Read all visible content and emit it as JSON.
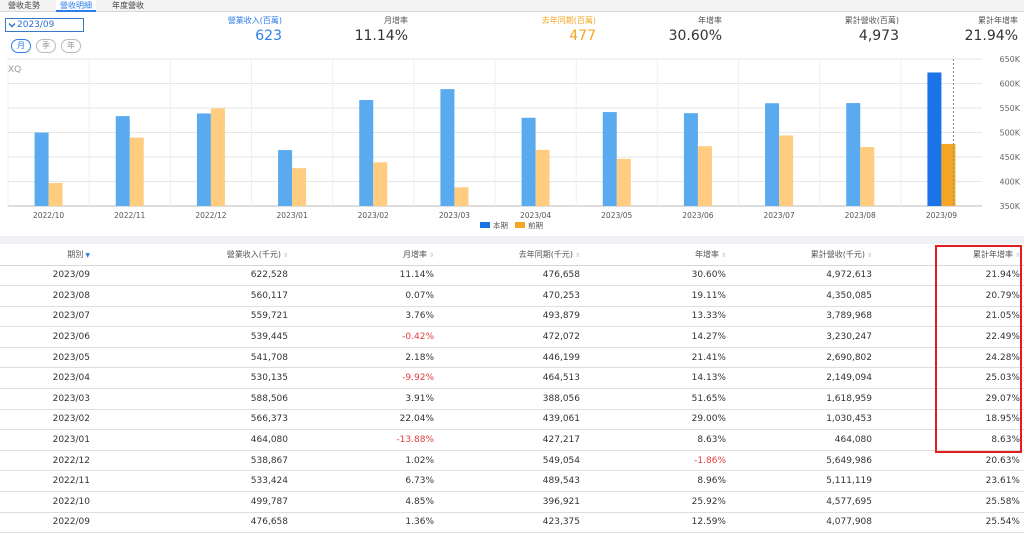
{
  "tabs": [
    {
      "label": "營收走勢"
    },
    {
      "label": "營收明細"
    },
    {
      "label": "年度營收"
    }
  ],
  "period_select": {
    "value": "2023/09",
    "icon": "chevron-down-icon"
  },
  "segments": [
    {
      "label": "月"
    },
    {
      "label": "季"
    },
    {
      "label": "年"
    }
  ],
  "stats": [
    {
      "label": "營業收入(百萬)",
      "value": "623",
      "color": "#2b7de9"
    },
    {
      "label": "月增率",
      "value": "11.14%",
      "color": "#333333"
    },
    {
      "label": "去年同期(百萬)",
      "value": "477",
      "color": "#f5a623"
    },
    {
      "label": "年增率",
      "value": "30.60%",
      "color": "#333333"
    },
    {
      "label": "累計營收(百萬)",
      "value": "4,973",
      "color": "#333333"
    },
    {
      "label": "累計年增率",
      "value": "21.94%",
      "color": "#333333"
    }
  ],
  "chart_data": {
    "type": "bar",
    "watermark": "XQ",
    "categories": [
      "2022/10",
      "2022/11",
      "2022/12",
      "2023/01",
      "2023/02",
      "2023/03",
      "2023/04",
      "2023/05",
      "2023/06",
      "2023/07",
      "2023/08",
      "2023/09"
    ],
    "series": [
      {
        "name": "本期",
        "color": "#5aaaf0",
        "highlight_color": "#1a73e8",
        "values": [
          499.8,
          533.4,
          538.9,
          464.1,
          566.4,
          588.5,
          530.1,
          541.7,
          539.4,
          559.7,
          560.1,
          622.5
        ]
      },
      {
        "name": "前期",
        "color": "#ffcc80",
        "highlight_color": "#f5a623",
        "values": [
          396.9,
          489.5,
          549.1,
          427.2,
          439.1,
          388.1,
          464.5,
          446.2,
          472.1,
          493.9,
          470.3,
          476.7
        ]
      }
    ],
    "ylim": [
      350,
      650
    ],
    "yticks": [
      "350K",
      "400K",
      "450K",
      "500K",
      "550K",
      "600K",
      "650K"
    ],
    "ytick_values": [
      350,
      400,
      450,
      500,
      550,
      600,
      650
    ],
    "legend": "bottom"
  },
  "table": {
    "headers": [
      "期別",
      "營業收入(千元)",
      "月增率",
      "去年同期(千元)",
      "年增率",
      "累計營收(千元)",
      "累計年增率"
    ],
    "rows": [
      [
        "2023/09",
        "622,528",
        "11.14%",
        "476,658",
        "30.60%",
        "4,972,613",
        "21.94%"
      ],
      [
        "2023/08",
        "560,117",
        "0.07%",
        "470,253",
        "19.11%",
        "4,350,085",
        "20.79%"
      ],
      [
        "2023/07",
        "559,721",
        "3.76%",
        "493,879",
        "13.33%",
        "3,789,968",
        "21.05%"
      ],
      [
        "2023/06",
        "539,445",
        "-0.42%",
        "472,072",
        "14.27%",
        "3,230,247",
        "22.49%"
      ],
      [
        "2023/05",
        "541,708",
        "2.18%",
        "446,199",
        "21.41%",
        "2,690,802",
        "24.28%"
      ],
      [
        "2023/04",
        "530,135",
        "-9.92%",
        "464,513",
        "14.13%",
        "2,149,094",
        "25.03%"
      ],
      [
        "2023/03",
        "588,506",
        "3.91%",
        "388,056",
        "51.65%",
        "1,618,959",
        "29.07%"
      ],
      [
        "2023/02",
        "566,373",
        "22.04%",
        "439,061",
        "29.00%",
        "1,030,453",
        "18.95%"
      ],
      [
        "2023/01",
        "464,080",
        "-13.88%",
        "427,217",
        "8.63%",
        "464,080",
        "8.63%"
      ],
      [
        "2022/12",
        "538,867",
        "1.02%",
        "549,054",
        "-1.86%",
        "5,649,986",
        "20.63%"
      ],
      [
        "2022/11",
        "533,424",
        "6.73%",
        "489,543",
        "8.96%",
        "5,111,119",
        "23.61%"
      ],
      [
        "2022/10",
        "499,787",
        "4.85%",
        "396,921",
        "25.92%",
        "4,577,695",
        "25.58%"
      ],
      [
        "2022/09",
        "476,658",
        "1.36%",
        "423,375",
        "12.59%",
        "4,077,908",
        "25.54%"
      ]
    ]
  }
}
